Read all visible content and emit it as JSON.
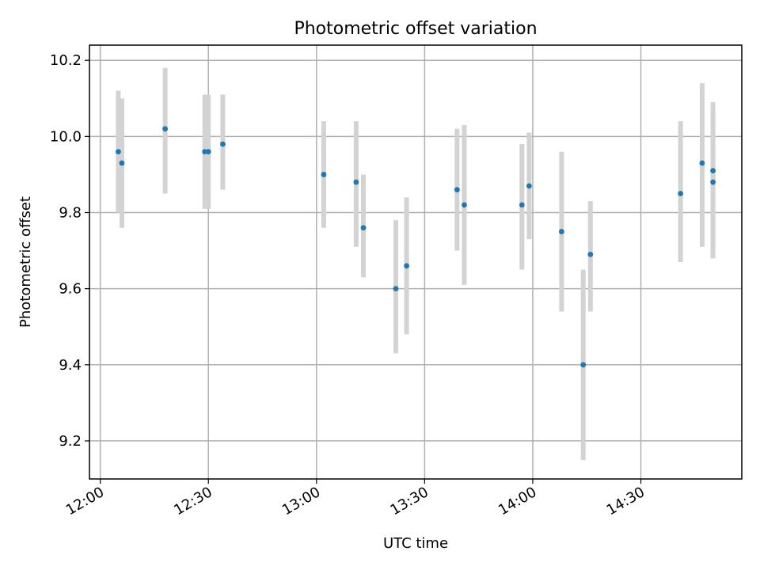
{
  "chart_data": {
    "type": "scatter",
    "title": "Photometric offset variation",
    "xlabel": "UTC time",
    "ylabel": "Photometric offset",
    "xlim": [
      "11:57",
      "14:58"
    ],
    "ylim": [
      9.1,
      10.24
    ],
    "x_ticks": [
      "12:00",
      "12:30",
      "13:00",
      "13:30",
      "14:00",
      "14:30"
    ],
    "y_ticks": [
      9.2,
      9.4,
      9.6,
      9.8,
      10.0,
      10.2
    ],
    "grid": true,
    "colors": {
      "point": "#1f77b4",
      "error_bar": "#d3d3d3"
    },
    "series": [
      {
        "x": [
          "12:05",
          "12:06",
          "12:18",
          "12:29",
          "12:30",
          "12:34",
          "13:02",
          "13:11",
          "13:13",
          "13:22",
          "13:25",
          "13:39",
          "13:41",
          "13:57",
          "13:59",
          "14:08",
          "14:14",
          "14:16",
          "14:41",
          "14:47",
          "14:50",
          "14:50"
        ],
        "y": [
          9.96,
          9.93,
          10.02,
          9.96,
          9.96,
          9.98,
          9.9,
          9.88,
          9.76,
          9.6,
          9.66,
          9.86,
          9.82,
          9.82,
          9.87,
          9.75,
          9.4,
          9.69,
          9.85,
          9.93,
          9.91,
          9.88
        ],
        "err_low": [
          9.8,
          9.76,
          9.85,
          9.81,
          9.81,
          9.86,
          9.76,
          9.71,
          9.63,
          9.43,
          9.48,
          9.7,
          9.61,
          9.65,
          9.73,
          9.54,
          9.15,
          9.54,
          9.67,
          9.71,
          9.68,
          9.68
        ],
        "err_high": [
          10.12,
          10.1,
          10.18,
          10.11,
          10.11,
          10.11,
          10.04,
          10.04,
          9.9,
          9.78,
          9.84,
          10.02,
          10.03,
          9.98,
          10.01,
          9.96,
          9.65,
          9.83,
          10.04,
          10.14,
          10.09,
          10.07
        ]
      }
    ]
  }
}
